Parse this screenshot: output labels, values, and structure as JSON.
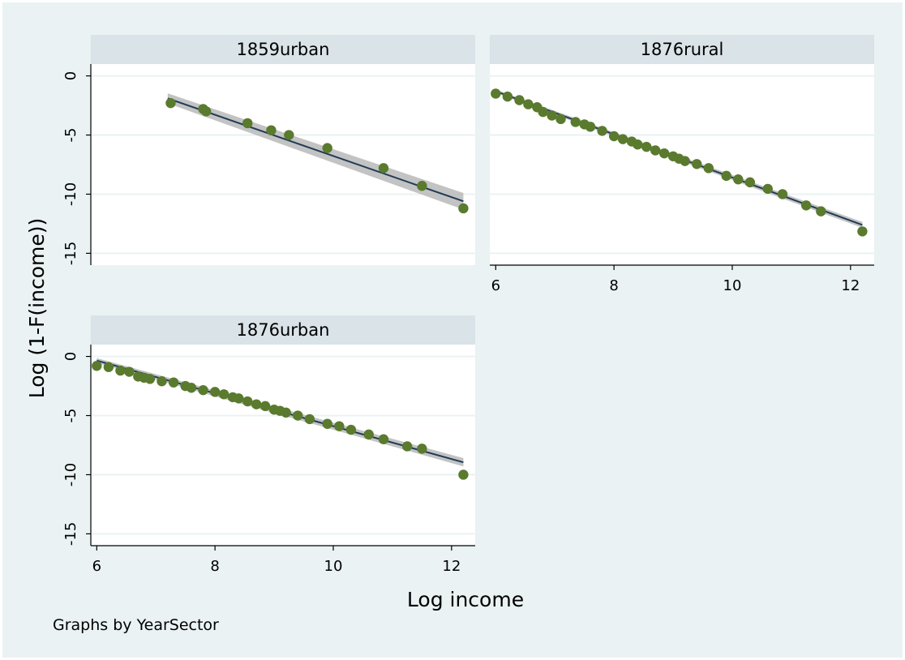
{
  "chart_data": {
    "type": "scatter",
    "xlabel": "Log income",
    "ylabel": "Log (1-F(income))",
    "note": "Graphs by YearSector",
    "xlim": [
      5.9,
      12.4
    ],
    "ylim": [
      -16,
      1
    ],
    "xticks": [
      6,
      8,
      10,
      12
    ],
    "yticks": [
      0,
      -5,
      -10,
      -15
    ],
    "colors": {
      "outer_background": "#eaf2f3",
      "plot_background": "#ffffff",
      "header_fill": "#d9e3e8",
      "gridline": "#eaf2f3",
      "marker": "#5a7a2e",
      "fit_line": "#1f3b57",
      "ci_band": "#b8b8b8"
    },
    "panels": [
      {
        "title": "1859urban",
        "fit": {
          "x0": 7.2,
          "y0": -1.9,
          "x1": 12.2,
          "y1": -10.6,
          "ci": 0.7
        },
        "points": [
          [
            7.25,
            -2.3
          ],
          [
            7.8,
            -2.8
          ],
          [
            7.85,
            -3.0
          ],
          [
            8.55,
            -4.0
          ],
          [
            8.95,
            -4.6
          ],
          [
            9.25,
            -5.0
          ],
          [
            9.9,
            -6.1
          ],
          [
            10.85,
            -7.8
          ],
          [
            11.5,
            -9.3
          ],
          [
            12.2,
            -11.2
          ]
        ]
      },
      {
        "title": "1876rural",
        "fit": {
          "x0": 6.0,
          "y0": -1.3,
          "x1": 12.2,
          "y1": -12.6,
          "ci": 0.25
        },
        "points": [
          [
            6.0,
            -1.5
          ],
          [
            6.2,
            -1.75
          ],
          [
            6.4,
            -2.05
          ],
          [
            6.55,
            -2.4
          ],
          [
            6.7,
            -2.65
          ],
          [
            6.8,
            -3.05
          ],
          [
            6.95,
            -3.35
          ],
          [
            7.1,
            -3.65
          ],
          [
            7.35,
            -3.9
          ],
          [
            7.5,
            -4.1
          ],
          [
            7.6,
            -4.3
          ],
          [
            7.8,
            -4.65
          ],
          [
            8.0,
            -5.1
          ],
          [
            8.15,
            -5.35
          ],
          [
            8.3,
            -5.55
          ],
          [
            8.4,
            -5.8
          ],
          [
            8.55,
            -6.0
          ],
          [
            8.7,
            -6.3
          ],
          [
            8.85,
            -6.55
          ],
          [
            9.0,
            -6.8
          ],
          [
            9.1,
            -7.0
          ],
          [
            9.2,
            -7.2
          ],
          [
            9.4,
            -7.45
          ],
          [
            9.6,
            -7.8
          ],
          [
            9.9,
            -8.45
          ],
          [
            10.1,
            -8.75
          ],
          [
            10.3,
            -9.0
          ],
          [
            10.6,
            -9.55
          ],
          [
            10.85,
            -10.0
          ],
          [
            11.25,
            -10.95
          ],
          [
            11.5,
            -11.45
          ],
          [
            12.2,
            -13.15
          ]
        ]
      },
      {
        "title": "1876urban",
        "fit": {
          "x0": 6.0,
          "y0": -0.35,
          "x1": 12.2,
          "y1": -8.95,
          "ci": 0.35
        },
        "points": [
          [
            6.0,
            -0.8
          ],
          [
            6.2,
            -0.9
          ],
          [
            6.4,
            -1.2
          ],
          [
            6.55,
            -1.3
          ],
          [
            6.7,
            -1.7
          ],
          [
            6.8,
            -1.8
          ],
          [
            6.9,
            -1.9
          ],
          [
            7.1,
            -2.1
          ],
          [
            7.3,
            -2.2
          ],
          [
            7.5,
            -2.5
          ],
          [
            7.6,
            -2.65
          ],
          [
            7.8,
            -2.85
          ],
          [
            8.0,
            -3.0
          ],
          [
            8.15,
            -3.2
          ],
          [
            8.3,
            -3.45
          ],
          [
            8.4,
            -3.55
          ],
          [
            8.55,
            -3.8
          ],
          [
            8.7,
            -4.05
          ],
          [
            8.85,
            -4.2
          ],
          [
            9.0,
            -4.5
          ],
          [
            9.1,
            -4.6
          ],
          [
            9.2,
            -4.75
          ],
          [
            9.4,
            -5.0
          ],
          [
            9.6,
            -5.3
          ],
          [
            9.9,
            -5.7
          ],
          [
            10.1,
            -5.9
          ],
          [
            10.3,
            -6.2
          ],
          [
            10.6,
            -6.6
          ],
          [
            10.85,
            -7.0
          ],
          [
            11.25,
            -7.6
          ],
          [
            11.5,
            -7.8
          ],
          [
            12.2,
            -10.0
          ]
        ]
      }
    ]
  }
}
